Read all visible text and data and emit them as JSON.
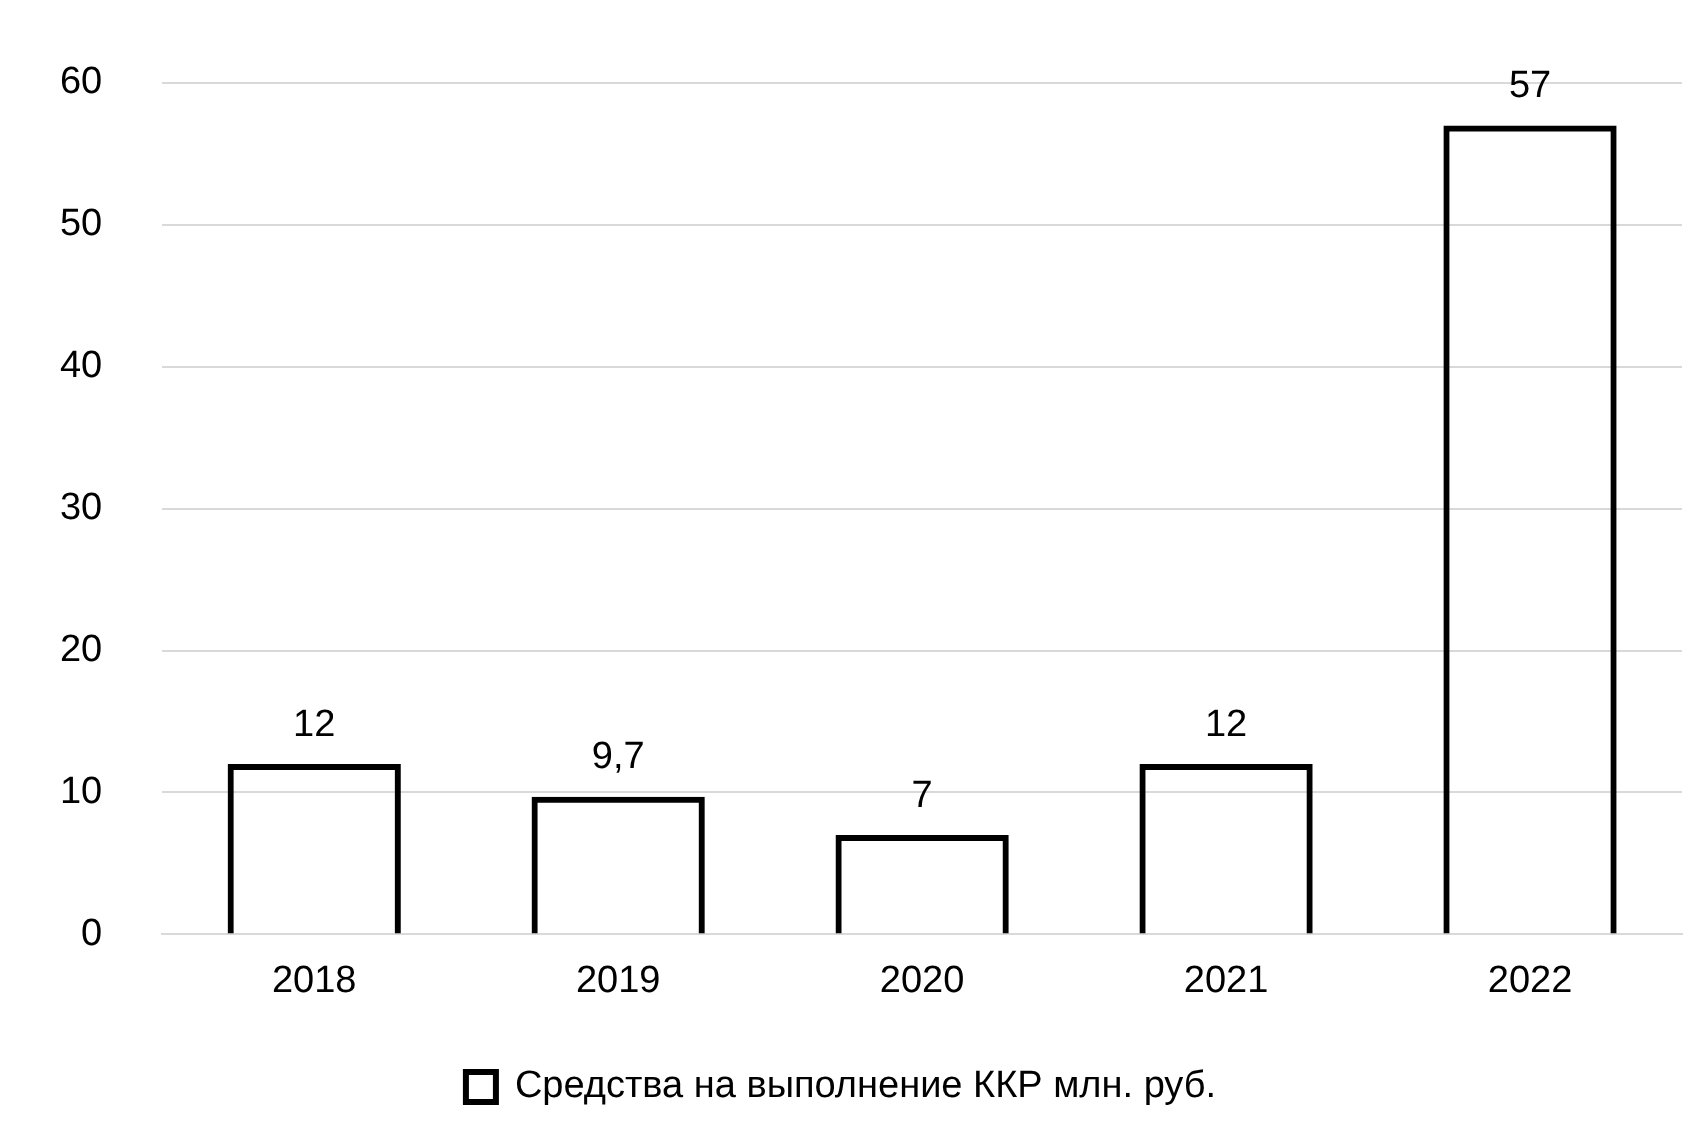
{
  "chart_data": {
    "type": "bar",
    "categories": [
      "2018",
      "2019",
      "2020",
      "2021",
      "2022"
    ],
    "series": [
      {
        "name": "Средства на выполнение ККР млн. руб.",
        "color": "#000000",
        "values": [
          12,
          9.7,
          7,
          12,
          57
        ],
        "value_labels": [
          "12",
          "9,7",
          "7",
          "12",
          "57"
        ]
      }
    ],
    "ylim": [
      0,
      60
    ],
    "yticks": [
      0,
      10,
      20,
      30,
      40,
      50,
      60
    ],
    "grid": "y",
    "legend": "bottom"
  }
}
